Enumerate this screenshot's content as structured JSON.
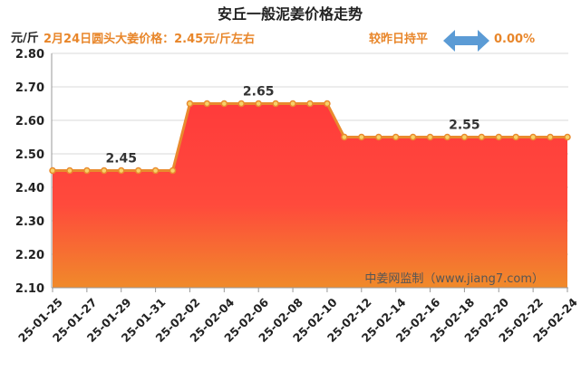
{
  "header": {
    "title": "安丘一般泥姜价格走势",
    "price_note": "2月24日圆头大姜价格：2.45元/斤左右",
    "compare_label": "较昨日持平",
    "change_value": "0.00%",
    "watermark": "中姜网监制（www.jiang7.com）",
    "icon": "double-arrow-icon"
  },
  "colors": {
    "title": "#222222",
    "accent": "#e8862a",
    "arrow": "#5b9bd5",
    "line": "#e98a2e",
    "point_fill": "#f7d26a",
    "area_top": "#ff3b3b",
    "area_bottom": "#f08a2a"
  },
  "chart_data": {
    "type": "area",
    "ylabel": "元/斤",
    "xlabel": "",
    "ylim": [
      2.1,
      2.8
    ],
    "yticks": [
      2.1,
      2.2,
      2.3,
      2.4,
      2.5,
      2.6,
      2.7,
      2.8
    ],
    "ytick_labels": [
      "2.10",
      "2.20",
      "2.30",
      "2.40",
      "2.50",
      "2.60",
      "2.70",
      "2.80"
    ],
    "x": [
      "25-01-25",
      "25-01-26",
      "25-01-27",
      "25-01-28",
      "25-01-29",
      "25-01-30",
      "25-01-31",
      "25-02-01",
      "25-02-02",
      "25-02-03",
      "25-02-04",
      "25-02-05",
      "25-02-06",
      "25-02-07",
      "25-02-08",
      "25-02-09",
      "25-02-10",
      "25-02-11",
      "25-02-12",
      "25-02-13",
      "25-02-14",
      "25-02-15",
      "25-02-16",
      "25-02-17",
      "25-02-18",
      "25-02-19",
      "25-02-20",
      "25-02-21",
      "25-02-22",
      "25-02-23",
      "25-02-24"
    ],
    "xtick_labels": [
      "25-01-25",
      "25-01-27",
      "25-01-29",
      "25-01-31",
      "25-02-02",
      "25-02-04",
      "25-02-06",
      "25-02-08",
      "25-02-10",
      "25-02-12",
      "25-02-14",
      "25-02-16",
      "25-02-18",
      "25-02-20",
      "25-02-22",
      "25-02-24"
    ],
    "series": [
      {
        "values": [
          2.45,
          2.45,
          2.45,
          2.45,
          2.45,
          2.45,
          2.45,
          2.45,
          2.65,
          2.65,
          2.65,
          2.65,
          2.65,
          2.65,
          2.65,
          2.65,
          2.65,
          2.55,
          2.55,
          2.55,
          2.55,
          2.55,
          2.55,
          2.55,
          2.55,
          2.55,
          2.55,
          2.55,
          2.55,
          2.55,
          2.55
        ]
      }
    ],
    "data_labels": [
      {
        "x": "25-01-29",
        "text": "2.45"
      },
      {
        "x": "25-02-06",
        "text": "2.65"
      },
      {
        "x": "25-02-18",
        "text": "2.55"
      }
    ],
    "grid": true
  }
}
